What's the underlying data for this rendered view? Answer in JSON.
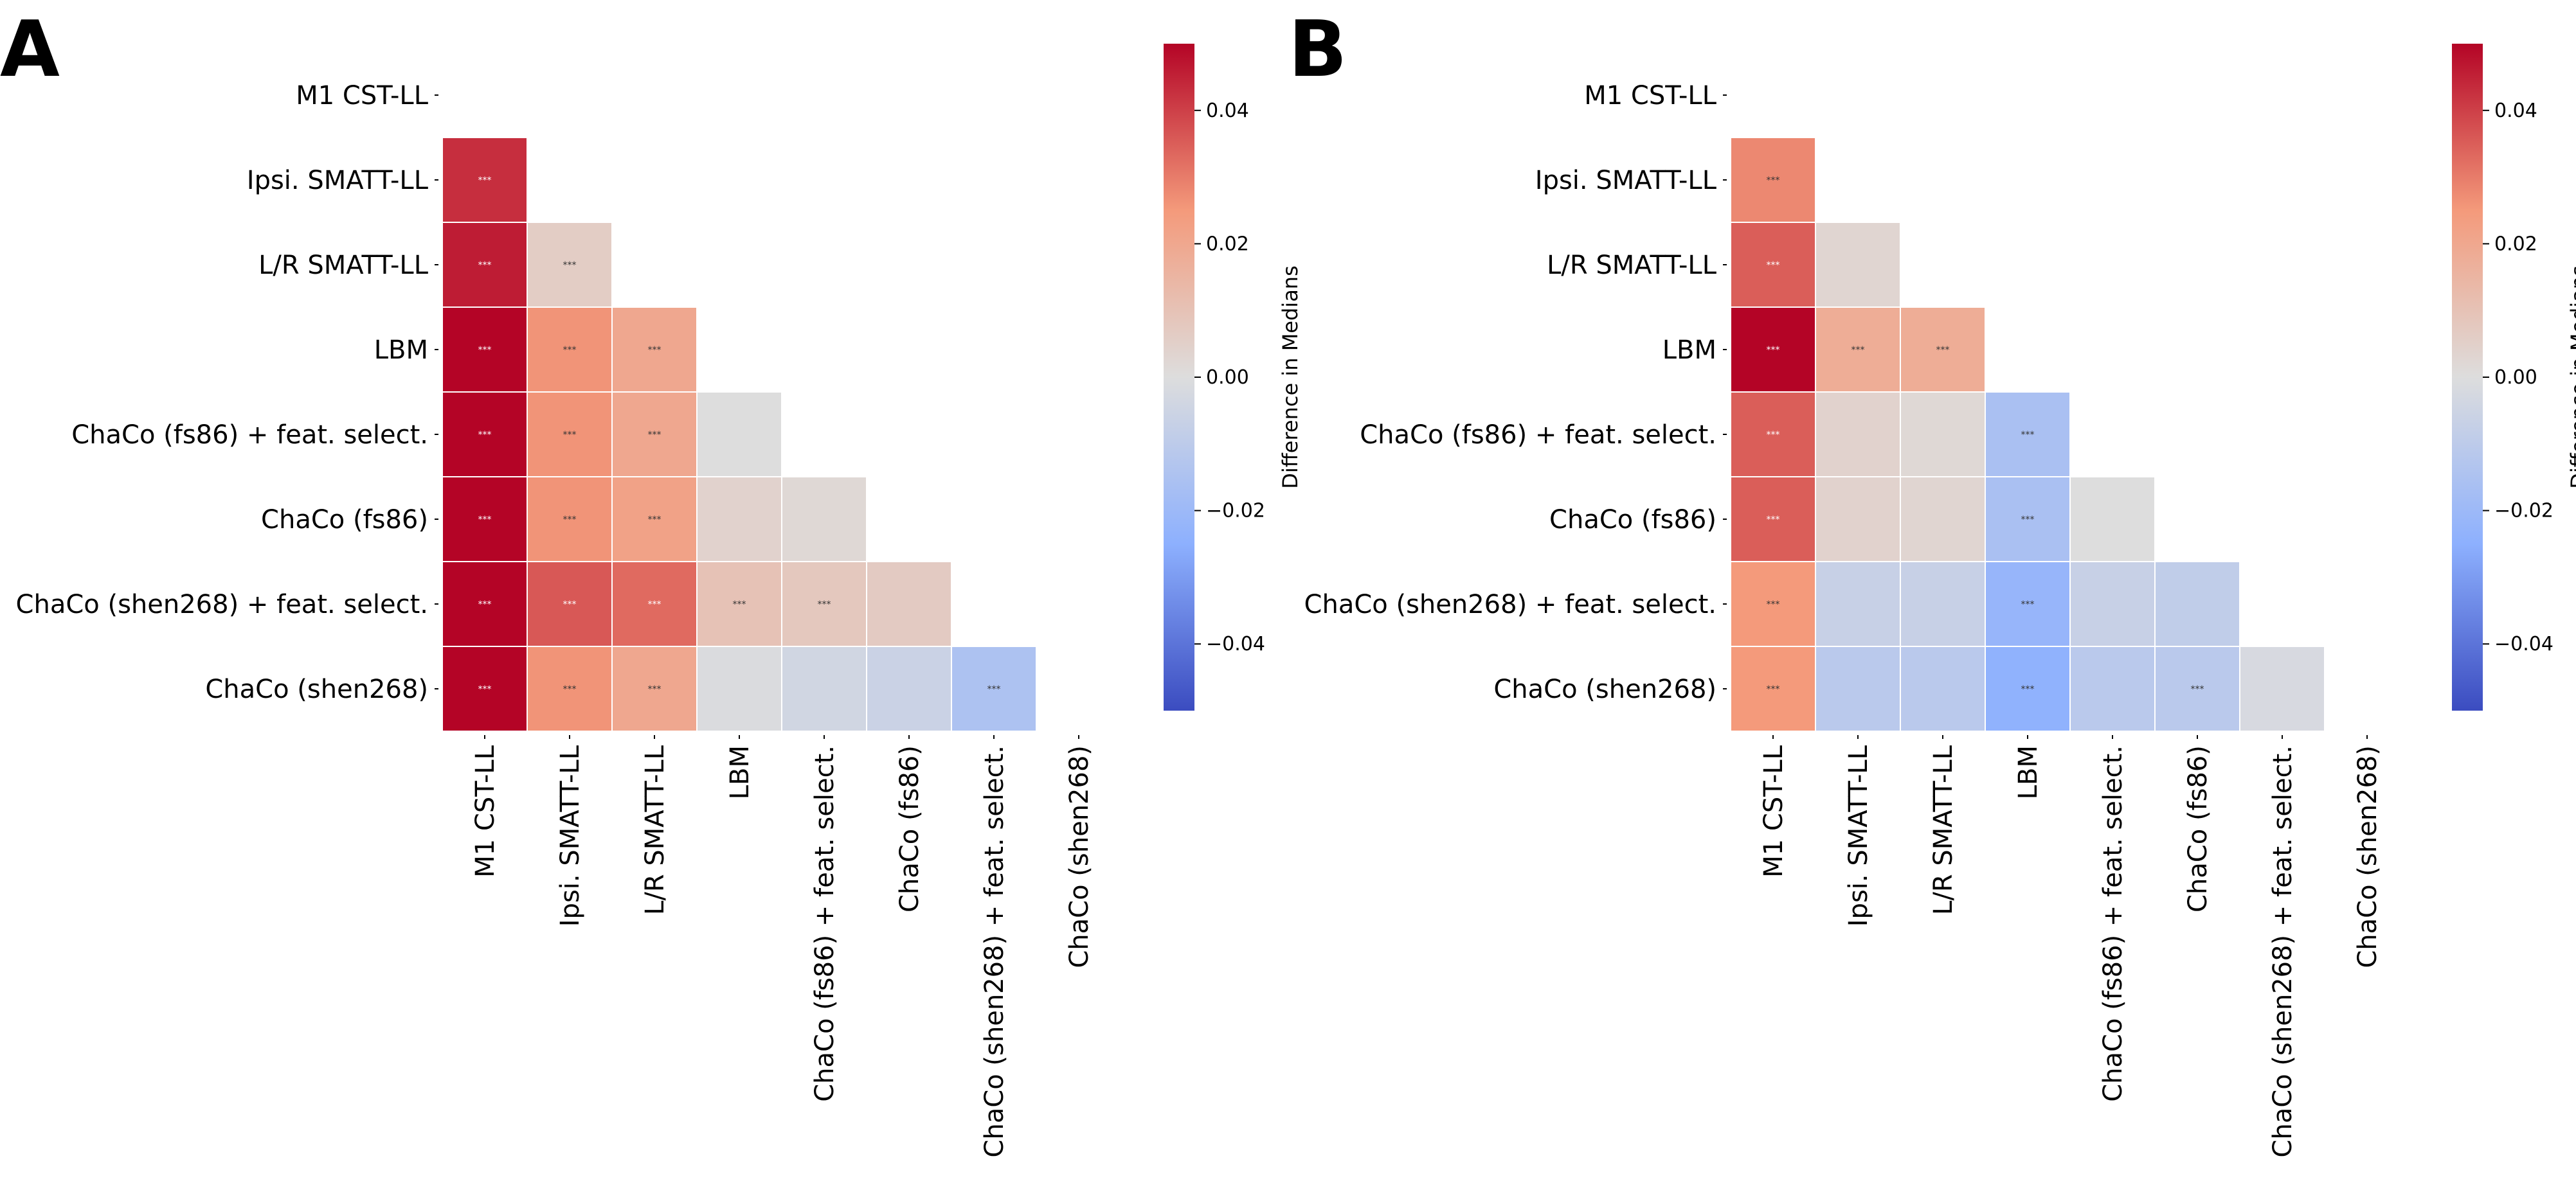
{
  "chart_data": [
    {
      "type": "heatmap",
      "panel_label": "A",
      "rows": [
        "M1 CST-LL",
        "Ipsi. SMATT-LL",
        "L/R SMATT-LL",
        "LBM",
        "ChaCo (fs86) + feat. select.",
        "ChaCo (fs86)",
        "ChaCo (shen268) + feat. select.",
        "ChaCo (shen268)"
      ],
      "columns": [
        "M1 CST-LL",
        "Ipsi. SMATT-LL",
        "L/R SMATT-LL",
        "LBM",
        "ChaCo (fs86) + feat. select.",
        "ChaCo (fs86)",
        "ChaCo (shen268) + feat. select.",
        "ChaCo (shen268)"
      ],
      "mask": "upper-triangle-and-diagonal",
      "values": [
        [
          null,
          null,
          null,
          null,
          null,
          null,
          null,
          null
        ],
        [
          0.043,
          null,
          null,
          null,
          null,
          null,
          null,
          null
        ],
        [
          0.046,
          0.006,
          null,
          null,
          null,
          null,
          null,
          null
        ],
        [
          0.05,
          0.026,
          0.02,
          null,
          null,
          null,
          null,
          null
        ],
        [
          0.05,
          0.026,
          0.02,
          0.0,
          null,
          null,
          null,
          null
        ],
        [
          0.05,
          0.026,
          0.022,
          0.004,
          0.002,
          null,
          null,
          null
        ],
        [
          0.05,
          0.036,
          0.033,
          0.01,
          0.008,
          0.007,
          null,
          null
        ],
        [
          0.05,
          0.026,
          0.02,
          -0.001,
          -0.004,
          -0.006,
          -0.015,
          null
        ]
      ],
      "annotations": [
        [
          null,
          null,
          null,
          null,
          null,
          null,
          null,
          null
        ],
        [
          "***",
          null,
          null,
          null,
          null,
          null,
          null,
          null
        ],
        [
          "***",
          "***",
          null,
          null,
          null,
          null,
          null,
          null
        ],
        [
          "***",
          "***",
          "***",
          null,
          null,
          null,
          null,
          null
        ],
        [
          "***",
          "***",
          "***",
          null,
          null,
          null,
          null,
          null
        ],
        [
          "***",
          "***",
          "***",
          null,
          null,
          null,
          null,
          null
        ],
        [
          "***",
          "***",
          "***",
          "***",
          "***",
          null,
          null,
          null
        ],
        [
          "***",
          "***",
          "***",
          null,
          null,
          null,
          "***",
          null
        ]
      ],
      "colormap": "coolwarm",
      "vmin": -0.05,
      "vmax": 0.05,
      "colorbar": {
        "label": "Difference in Medians",
        "ticks": [
          0.04,
          0.02,
          0.0,
          -0.02,
          -0.04
        ],
        "tick_labels": [
          "0.04",
          "0.02",
          "0.00",
          "−0.02",
          "−0.04"
        ]
      }
    },
    {
      "type": "heatmap",
      "panel_label": "B",
      "rows": [
        "M1 CST-LL",
        "Ipsi. SMATT-LL",
        "L/R SMATT-LL",
        "LBM",
        "ChaCo (fs86) + feat. select.",
        "ChaCo (fs86)",
        "ChaCo (shen268) + feat. select.",
        "ChaCo (shen268)"
      ],
      "columns": [
        "M1 CST-LL",
        "Ipsi. SMATT-LL",
        "L/R SMATT-LL",
        "LBM",
        "ChaCo (fs86) + feat. select.",
        "ChaCo (fs86)",
        "ChaCo (shen268) + feat. select.",
        "ChaCo (shen268)"
      ],
      "mask": "upper-triangle-and-diagonal",
      "values": [
        [
          null,
          null,
          null,
          null,
          null,
          null,
          null,
          null
        ],
        [
          0.028,
          null,
          null,
          null,
          null,
          null,
          null,
          null
        ],
        [
          0.035,
          0.003,
          null,
          null,
          null,
          null,
          null,
          null
        ],
        [
          0.05,
          0.018,
          0.018,
          null,
          null,
          null,
          null,
          null
        ],
        [
          0.035,
          0.004,
          0.002,
          -0.016,
          null,
          null,
          null,
          null
        ],
        [
          0.035,
          0.004,
          0.003,
          -0.016,
          0.0,
          null,
          null,
          null
        ],
        [
          0.025,
          -0.007,
          -0.007,
          -0.022,
          -0.007,
          -0.009,
          null,
          null
        ],
        [
          0.025,
          -0.011,
          -0.011,
          -0.024,
          -0.011,
          -0.011,
          -0.002,
          null
        ]
      ],
      "annotations": [
        [
          null,
          null,
          null,
          null,
          null,
          null,
          null,
          null
        ],
        [
          "***",
          null,
          null,
          null,
          null,
          null,
          null,
          null
        ],
        [
          "***",
          null,
          null,
          null,
          null,
          null,
          null,
          null
        ],
        [
          "***",
          "***",
          "***",
          null,
          null,
          null,
          null,
          null
        ],
        [
          "***",
          null,
          null,
          "***",
          null,
          null,
          null,
          null
        ],
        [
          "***",
          null,
          null,
          "***",
          null,
          null,
          null,
          null
        ],
        [
          "***",
          null,
          null,
          "***",
          null,
          null,
          null,
          null
        ],
        [
          "***",
          null,
          null,
          "***",
          null,
          "***",
          null,
          null
        ]
      ],
      "colormap": "coolwarm",
      "vmin": -0.05,
      "vmax": 0.05,
      "colorbar": {
        "label": "Difference in Medians",
        "ticks": [
          0.04,
          0.02,
          0.0,
          -0.02,
          -0.04
        ],
        "tick_labels": [
          "0.04",
          "0.02",
          "0.00",
          "−0.02",
          "−0.04"
        ]
      }
    }
  ]
}
